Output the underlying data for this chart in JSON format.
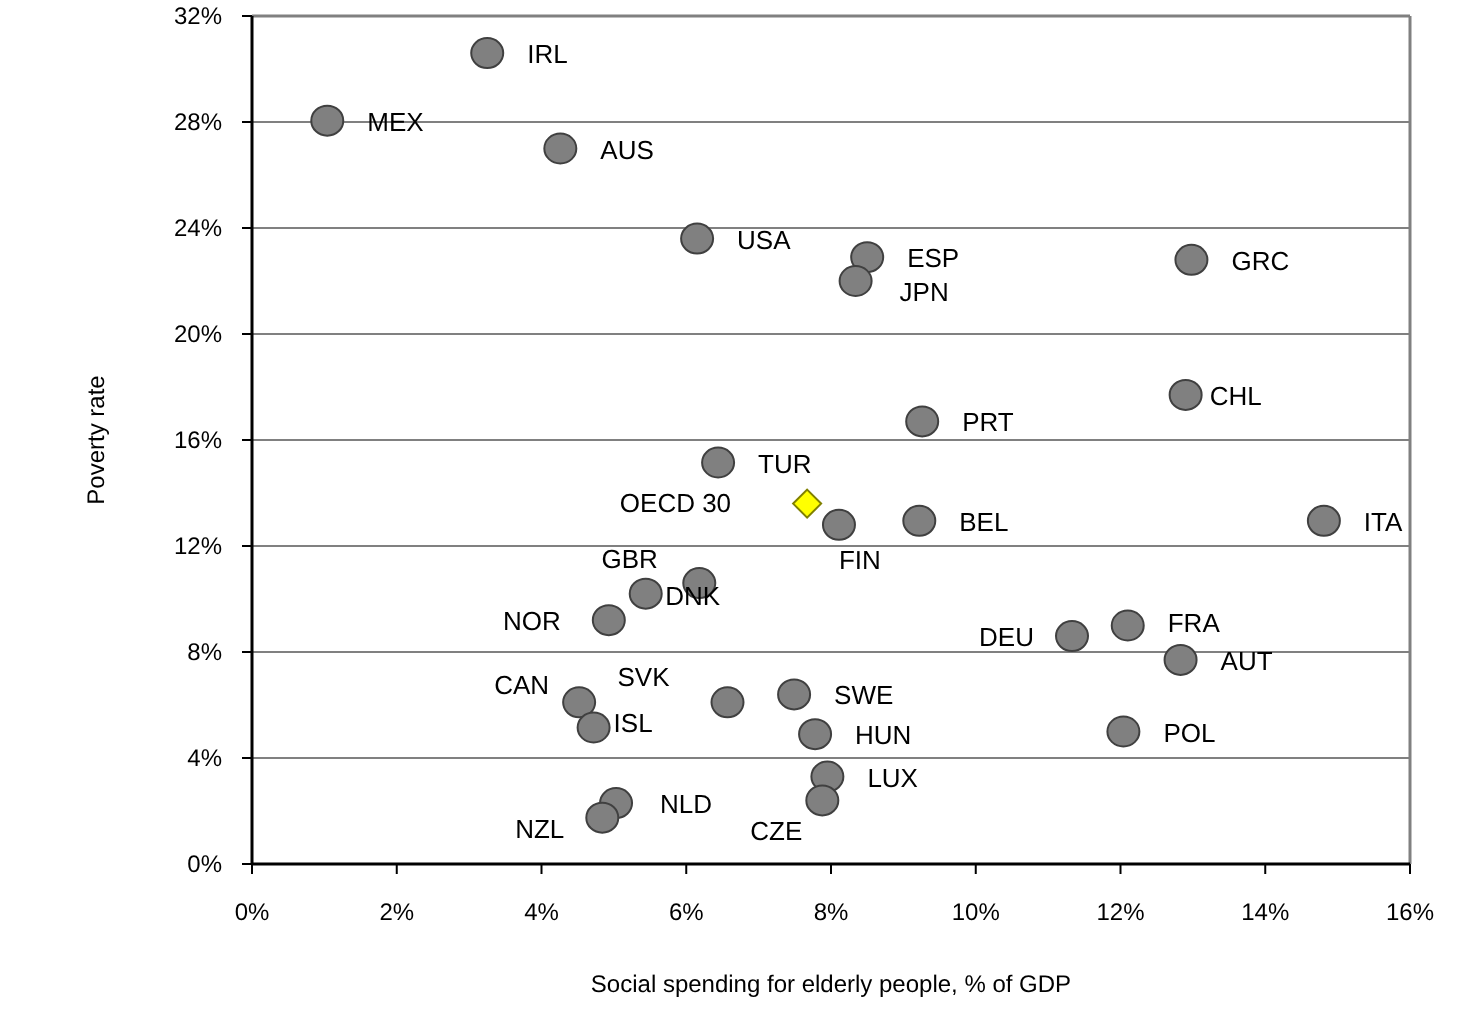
{
  "chart_data": {
    "type": "scatter",
    "xlabel": "Social spending for elderly people, % of GDP",
    "ylabel": "Poverty rate",
    "xlim": [
      0,
      16
    ],
    "ylim": [
      0,
      32
    ],
    "xticks": [
      {
        "value": 0,
        "label": "0%"
      },
      {
        "value": 2,
        "label": "2%"
      },
      {
        "value": 4,
        "label": "4%"
      },
      {
        "value": 6,
        "label": "6%"
      },
      {
        "value": 8,
        "label": "8%"
      },
      {
        "value": 10,
        "label": "10%"
      },
      {
        "value": 12,
        "label": "12%"
      },
      {
        "value": 14,
        "label": "14%"
      },
      {
        "value": 16,
        "label": "16%"
      }
    ],
    "yticks": [
      {
        "value": 0,
        "label": "0%"
      },
      {
        "value": 4,
        "label": "4%"
      },
      {
        "value": 8,
        "label": "8%"
      },
      {
        "value": 12,
        "label": "12%"
      },
      {
        "value": 16,
        "label": "16%"
      },
      {
        "value": 20,
        "label": "20%"
      },
      {
        "value": 24,
        "label": "24%"
      },
      {
        "value": 28,
        "label": "28%"
      },
      {
        "value": 32,
        "label": "32%"
      }
    ],
    "grid": "y",
    "series": [
      {
        "color": "#808080",
        "marker": "circle",
        "x": [
          3.25,
          1.04,
          4.26,
          6.15,
          8.5,
          8.34,
          12.98,
          12.9,
          9.26,
          6.44,
          8.11,
          5.44,
          6.18,
          4.93,
          4.52,
          4.72,
          6.57,
          7.49,
          7.78,
          7.95,
          7.88,
          5.03,
          4.84,
          9.22,
          14.81,
          11.33,
          12.1,
          12.83,
          12.04
        ],
        "values": [
          30.6,
          28.05,
          27.0,
          23.6,
          22.9,
          22.0,
          22.8,
          17.7,
          16.7,
          15.15,
          12.8,
          10.2,
          10.6,
          9.2,
          6.1,
          5.15,
          6.1,
          6.4,
          4.9,
          3.3,
          2.4,
          2.3,
          1.75,
          12.95,
          12.95,
          8.6,
          9.0,
          7.7,
          5.0
        ]
      },
      {
        "color": "#ffff00",
        "marker": "diamond",
        "x": [
          7.67
        ],
        "values": [
          13.6
        ]
      }
    ],
    "annotations": [
      {
        "text": "IRL",
        "x": 3.25,
        "y": 30.6
      },
      {
        "text": "MEX",
        "x": 1.04,
        "y": 28.05
      },
      {
        "text": "AUS",
        "x": 4.26,
        "y": 27.0
      },
      {
        "text": "USA",
        "x": 6.15,
        "y": 23.6
      },
      {
        "text": "ESP",
        "x": 8.5,
        "y": 22.9
      },
      {
        "text": "JPN",
        "x": 8.34,
        "y": 22.0
      },
      {
        "text": "GRC",
        "x": 12.98,
        "y": 22.8
      },
      {
        "text": "CHL",
        "x": 12.9,
        "y": 17.7
      },
      {
        "text": "PRT",
        "x": 9.26,
        "y": 16.7
      },
      {
        "text": "TUR",
        "x": 6.44,
        "y": 15.15
      },
      {
        "text": "FIN",
        "x": 8.11,
        "y": 12.8
      },
      {
        "text": "GBR",
        "x": 5.44,
        "y": 10.2
      },
      {
        "text": "DNK",
        "x": 6.18,
        "y": 10.6
      },
      {
        "text": "NOR",
        "x": 4.93,
        "y": 9.2
      },
      {
        "text": "CAN",
        "x": 4.52,
        "y": 6.1
      },
      {
        "text": "ISL",
        "x": 4.72,
        "y": 5.15
      },
      {
        "text": "SVK",
        "x": 6.57,
        "y": 6.1
      },
      {
        "text": "SWE",
        "x": 7.49,
        "y": 6.4
      },
      {
        "text": "HUN",
        "x": 7.78,
        "y": 4.9
      },
      {
        "text": "LUX",
        "x": 7.95,
        "y": 3.3
      },
      {
        "text": "CZE",
        "x": 7.88,
        "y": 2.4
      },
      {
        "text": "NLD",
        "x": 5.03,
        "y": 2.3
      },
      {
        "text": "NZL",
        "x": 4.84,
        "y": 1.75
      },
      {
        "text": "BEL",
        "x": 9.22,
        "y": 12.95
      },
      {
        "text": "ITA",
        "x": 14.81,
        "y": 12.95
      },
      {
        "text": "DEU",
        "x": 11.33,
        "y": 8.6
      },
      {
        "text": "FRA",
        "x": 12.1,
        "y": 9.0
      },
      {
        "text": "AUT",
        "x": 12.83,
        "y": 7.7
      },
      {
        "text": "POL",
        "x": 12.04,
        "y": 5.0
      },
      {
        "text": "OECD 30",
        "x": 7.67,
        "y": 13.6
      }
    ]
  }
}
